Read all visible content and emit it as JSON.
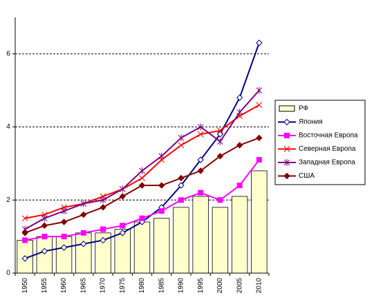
{
  "chart_data": {
    "type": "combo",
    "categories": [
      "1950",
      "1955",
      "1960",
      "1965",
      "1970",
      "1975",
      "1980",
      "1985",
      "1990",
      "1995",
      "2000",
      "2005",
      "2010"
    ],
    "ylim": [
      0,
      7
    ],
    "yticks": [
      0,
      2,
      4,
      6
    ],
    "grid": true,
    "legend": "right",
    "series": [
      {
        "name": "РФ",
        "type": "bar",
        "color": "#ffffcc",
        "values": [
          0.9,
          1.0,
          1.0,
          1.1,
          1.1,
          1.2,
          1.4,
          1.5,
          1.8,
          2.1,
          1.8,
          2.1,
          2.8
        ]
      },
      {
        "name": "Япония",
        "type": "line",
        "marker": "diamond-open",
        "color": "#000080",
        "values": [
          0.4,
          0.6,
          0.7,
          0.8,
          0.9,
          1.1,
          1.4,
          1.8,
          2.4,
          3.1,
          3.8,
          4.8,
          6.3
        ]
      },
      {
        "name": "Восточная Европа",
        "type": "line",
        "marker": "square",
        "color": "#ff00ff",
        "values": [
          0.9,
          1.0,
          1.0,
          1.1,
          1.2,
          1.3,
          1.5,
          1.7,
          2.0,
          2.2,
          2.0,
          2.4,
          3.1
        ]
      },
      {
        "name": "Северная Европа",
        "type": "line",
        "marker": "x",
        "color": "#ff0000",
        "values": [
          1.5,
          1.6,
          1.8,
          1.9,
          2.1,
          2.3,
          2.6,
          3.1,
          3.5,
          3.8,
          3.9,
          4.3,
          4.6
        ]
      },
      {
        "name": "Западная Европа",
        "type": "line",
        "marker": "star",
        "color": "#800080",
        "values": [
          1.2,
          1.5,
          1.7,
          1.9,
          2.0,
          2.3,
          2.8,
          3.2,
          3.7,
          4.0,
          3.6,
          4.4,
          5.0
        ]
      },
      {
        "name": "США",
        "type": "line",
        "marker": "diamond",
        "color": "#800000",
        "values": [
          1.1,
          1.3,
          1.4,
          1.6,
          1.8,
          2.1,
          2.4,
          2.4,
          2.6,
          2.8,
          3.2,
          3.5,
          3.7
        ]
      }
    ]
  }
}
